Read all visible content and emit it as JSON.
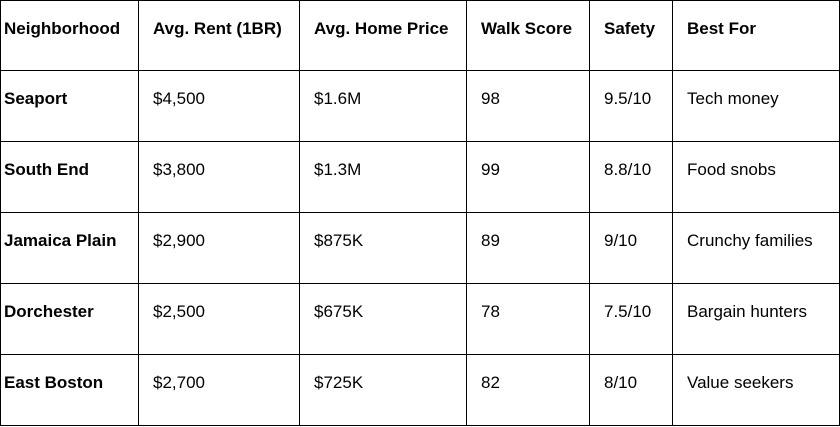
{
  "table": {
    "headers": [
      "Neighborhood",
      "Avg. Rent (1BR)",
      "Avg. Home Price",
      "Walk Score",
      "Safety",
      "Best For"
    ],
    "rows": [
      [
        "Seaport",
        "$4,500",
        "$1.6M",
        "98",
        "9.5/10",
        "Tech money"
      ],
      [
        "South End",
        "$3,800",
        "$1.3M",
        "99",
        "8.8/10",
        "Food snobs"
      ],
      [
        "Jamaica Plain",
        "$2,900",
        "$875K",
        "89",
        "9/10",
        "Crunchy families"
      ],
      [
        "Dorchester",
        "$2,500",
        "$675K",
        "78",
        "7.5/10",
        "Bargain hunters"
      ],
      [
        "East Boston",
        "$2,700",
        "$725K",
        "82",
        "8/10",
        "Value seekers"
      ]
    ]
  }
}
